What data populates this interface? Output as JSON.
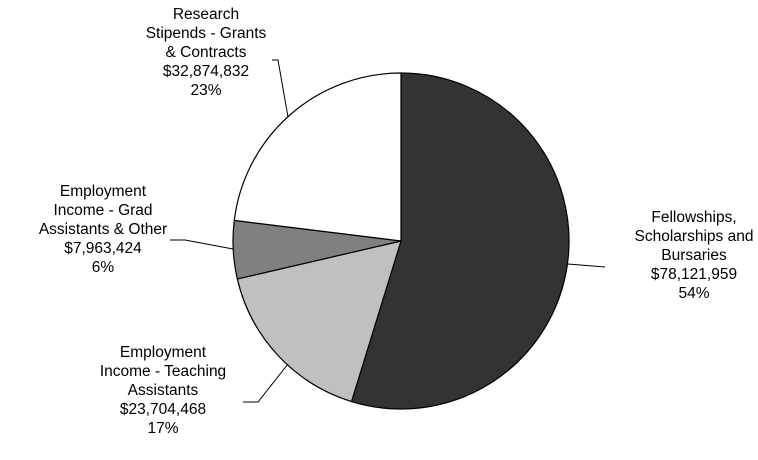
{
  "chart_data": {
    "type": "pie",
    "title": "",
    "start_angle_deg": 0,
    "direction": "clockwise",
    "legend": "none",
    "slices": [
      {
        "category": [
          "Fellowships,",
          "Scholarships and",
          "Bursaries"
        ],
        "value": 78121959,
        "value_label": "$78,121,959",
        "percent_label": "54%",
        "color": "#333333"
      },
      {
        "category": [
          "Employment",
          "Income - Teaching",
          "Assistants"
        ],
        "value": 23704468,
        "value_label": "$23,704,468",
        "percent_label": "17%",
        "color": "#c0c0c0"
      },
      {
        "category": [
          "Employment",
          "Income - Grad",
          "Assistants & Other"
        ],
        "value": 7963424,
        "value_label": "$7,963,424",
        "percent_label": "6%",
        "color": "#808080"
      },
      {
        "category": [
          "Research",
          "Stipends - Grants",
          "& Contracts"
        ],
        "value": 32874832,
        "value_label": "$32,874,832",
        "percent_label": "23%",
        "color": "#ffffff"
      }
    ]
  }
}
